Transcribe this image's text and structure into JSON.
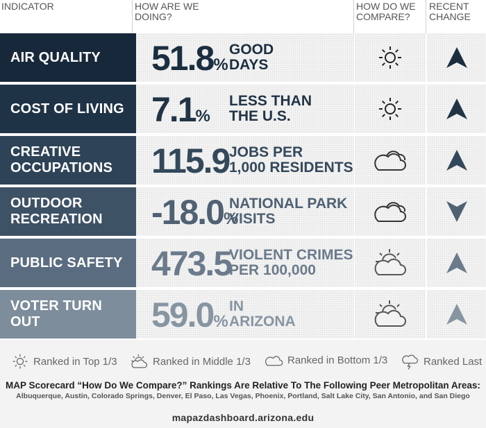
{
  "header": {
    "indicator": "INDICATOR",
    "doing": "HOW ARE WE\nDOING?",
    "compare": "HOW DO WE\nCOMPARE?",
    "change": "RECENT\nCHANGE"
  },
  "colors": {
    "row_label": [
      "#17283a",
      "#1f3347",
      "#2e4357",
      "#3e5266",
      "#5a6d80",
      "#7d8d9c"
    ],
    "row_value": [
      "#1b2e40",
      "#213446",
      "#34485b",
      "#4f6173",
      "#6b7b8b",
      "#8795a2"
    ]
  },
  "rows": [
    {
      "label": "AIR QUALITY",
      "value": "51.8",
      "unit": "%",
      "desc1": "GOOD",
      "desc2": "DAYS",
      "compare_icon": "sun-icon",
      "change_icon": "up-arrow-icon"
    },
    {
      "label": "COST OF LIVING",
      "value": "7.1",
      "unit": "%",
      "desc1": "LESS THAN",
      "desc2": "THE U.S.",
      "compare_icon": "sun-icon",
      "change_icon": "up-arrow-icon"
    },
    {
      "label": "CREATIVE\nOCCUPATIONS",
      "value": "115.9",
      "unit": "",
      "desc1": "JOBS PER",
      "desc2": "1,000 RESIDENTS",
      "compare_icon": "cloud-icon",
      "change_icon": "up-arrow-icon"
    },
    {
      "label": "OUTDOOR\nRECREATION",
      "value": "-18.0",
      "unit": "%",
      "desc1": "NATIONAL PARK",
      "desc2": "VISITS",
      "compare_icon": "cloud-icon",
      "change_icon": "down-arrow-icon"
    },
    {
      "label": "PUBLIC SAFETY",
      "value": "473.5",
      "unit": "",
      "desc1": "VIOLENT CRIMES",
      "desc2": "PER 100,000",
      "compare_icon": "sun-cloud-icon",
      "change_icon": "up-arrow-icon"
    },
    {
      "label": "VOTER TURN\nOUT",
      "value": "59.0",
      "unit": "%",
      "desc1": "IN",
      "desc2": "ARIZONA",
      "compare_icon": "sun-cloud-icon",
      "change_icon": "up-arrow-icon"
    }
  ],
  "legend": {
    "top": "Ranked in Top 1/3",
    "middle": "Ranked in Middle 1/3",
    "bottom": "Ranked in Bottom 1/3",
    "last": "Ranked Last"
  },
  "note_title": "MAP Scorecard “How Do We Compare?” Rankings Are Relative To The Following Peer Metropolitan Areas:",
  "note_cities": "Albuquerque, Austin, Colorado Springs, Denver, El Paso, Las Vegas, Phoenix, Portland, Salt Lake City, San Antonio, and San Diego",
  "url": "mapazdashboard.arizona.edu"
}
